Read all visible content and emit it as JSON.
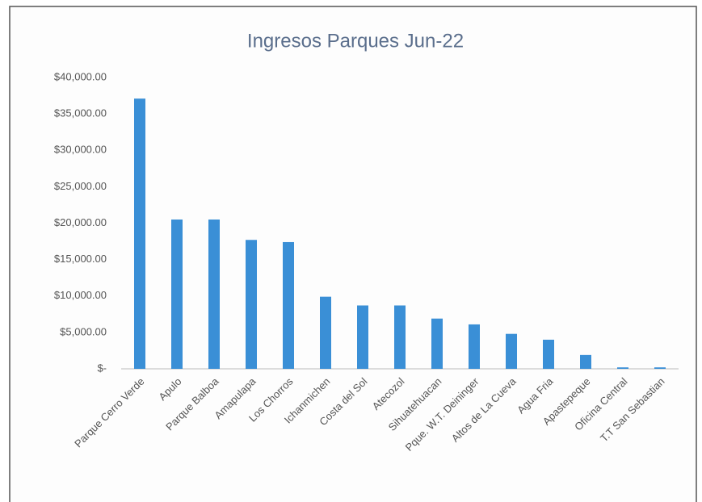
{
  "chart_data": {
    "type": "bar",
    "title": "Ingresos Parques Jun-22",
    "categories": [
      "Parque Cerro Verde",
      "Apulo",
      "Parque Balboa",
      "Amapulapa",
      "Los Chorros",
      "Ichanmichen",
      "Costa del Sol",
      "Atecozol",
      "Sihuatehuacan",
      "Pque. W.T. Deininger",
      "Altos de La Cueva",
      "Agua Fria",
      "Apastepeque",
      "Oficina Central",
      "T.T San Sebastian"
    ],
    "values": [
      37100,
      20500,
      20500,
      17700,
      17400,
      9900,
      8700,
      8700,
      6900,
      6100,
      4800,
      4000,
      1900,
      200,
      200
    ],
    "color": "#3a8fd6",
    "ylim": [
      0,
      40000
    ],
    "yticks": [
      {
        "value": 0,
        "label": "$-"
      },
      {
        "value": 5000,
        "label": "$5,000.00"
      },
      {
        "value": 10000,
        "label": "$10,000.00"
      },
      {
        "value": 15000,
        "label": "$15,000.00"
      },
      {
        "value": 20000,
        "label": "$20,000.00"
      },
      {
        "value": 25000,
        "label": "$25,000.00"
      },
      {
        "value": 30000,
        "label": "$30,000.00"
      },
      {
        "value": 35000,
        "label": "$35,000.00"
      },
      {
        "value": 40000,
        "label": "$40,000.00"
      }
    ],
    "grid": false
  }
}
